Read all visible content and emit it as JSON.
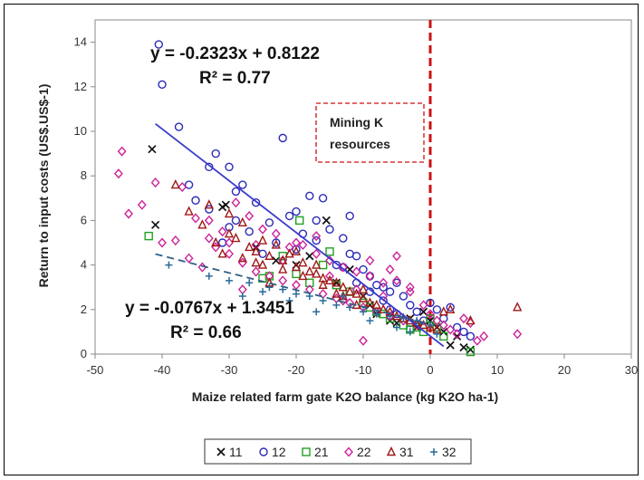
{
  "chart_data": {
    "type": "scatter",
    "title": "",
    "xlabel": "Maize related farm gate K2O balance (kg K2O ha-1)",
    "ylabel": "Return to input costs (US$.US$-1)",
    "xlim": [
      -50,
      30
    ],
    "ylim": [
      0,
      15
    ],
    "xticks": [
      "-50",
      "-40",
      "-30",
      "-20",
      "-10",
      "0",
      "10",
      "20",
      "30"
    ],
    "yticks": [
      "0",
      "2",
      "4",
      "6",
      "8",
      "10",
      "12",
      "14"
    ],
    "grid": false,
    "legend_position": "bottom",
    "reference_line": {
      "x": 0,
      "color": "#cc1111",
      "style": "dashed"
    },
    "annotation_box": {
      "text_line1": "Mining K",
      "text_line2": "resources"
    },
    "trendlines": [
      {
        "equation": "y = -0.2323x + 0.8122",
        "r2": "R² = 0.77",
        "slope": -0.2323,
        "intercept": 0.8122,
        "x_range": [
          -41,
          2
        ],
        "color": "#3a3acc",
        "style": "solid"
      },
      {
        "equation": "y = -0.0767x + 1.3451",
        "r2": "R² = 0.66",
        "slope": -0.0767,
        "intercept": 1.3451,
        "x_range": [
          -41,
          0
        ],
        "color": "#2e5f86",
        "style": "dashed"
      }
    ],
    "series": [
      {
        "name": "11",
        "marker": "x",
        "color": "#111111",
        "points": [
          [
            -41.5,
            9.2
          ],
          [
            -41,
            5.8
          ],
          [
            -31,
            6.6
          ],
          [
            -30.5,
            6.7
          ],
          [
            -15.5,
            6.0
          ],
          [
            -23,
            4.2
          ],
          [
            -18,
            4.4
          ],
          [
            -12,
            3.8
          ],
          [
            -9,
            2.2
          ],
          [
            -8,
            1.8
          ],
          [
            -6,
            1.5
          ],
          [
            -2,
            1.2
          ],
          [
            0,
            1.5
          ],
          [
            1,
            1.2
          ],
          [
            2,
            1.0
          ],
          [
            3,
            0.4
          ],
          [
            4,
            0.8
          ],
          [
            5,
            0.3
          ],
          [
            6,
            0.2
          ],
          [
            -1,
            1.9
          ],
          [
            -3,
            1.6
          ],
          [
            -10,
            2.6
          ],
          [
            -14,
            3.2
          ],
          [
            -20,
            4.0
          ],
          [
            -26,
            4.8
          ],
          [
            -5,
            1.4
          ]
        ]
      },
      {
        "name": "12",
        "marker": "circle",
        "color": "#2a2ab8",
        "points": [
          [
            -40.5,
            13.9
          ],
          [
            -40,
            12.1
          ],
          [
            -37.5,
            10.2
          ],
          [
            -33,
            8.4
          ],
          [
            -32,
            9.0
          ],
          [
            -30,
            8.4
          ],
          [
            -29,
            7.3
          ],
          [
            -28,
            7.6
          ],
          [
            -26,
            6.8
          ],
          [
            -22,
            9.7
          ],
          [
            -20,
            6.4
          ],
          [
            -18,
            7.1
          ],
          [
            -16,
            7.0
          ],
          [
            -17,
            6.0
          ],
          [
            -15,
            5.6
          ],
          [
            -13,
            5.2
          ],
          [
            -12,
            4.5
          ],
          [
            -11,
            4.4
          ],
          [
            -10,
            3.8
          ],
          [
            -9,
            3.5
          ],
          [
            -8,
            3.1
          ],
          [
            -7,
            3.0
          ],
          [
            -6,
            2.8
          ],
          [
            -5,
            3.2
          ],
          [
            -4,
            2.6
          ],
          [
            -3,
            2.2
          ],
          [
            -2,
            1.9
          ],
          [
            -1,
            1.5
          ],
          [
            0,
            2.3
          ],
          [
            1,
            2.0
          ],
          [
            2,
            1.6
          ],
          [
            3,
            2.1
          ],
          [
            4,
            1.2
          ],
          [
            5,
            1.0
          ],
          [
            6,
            0.8
          ],
          [
            -35,
            6.9
          ],
          [
            -33,
            6.5
          ],
          [
            -31,
            5.0
          ],
          [
            -29,
            6.0
          ],
          [
            -27,
            5.5
          ],
          [
            -25,
            4.5
          ],
          [
            -23,
            5.0
          ],
          [
            -21,
            6.2
          ],
          [
            -19,
            5.4
          ],
          [
            -14,
            4.0
          ],
          [
            -13,
            3.9
          ],
          [
            -11,
            3.2
          ],
          [
            -9,
            2.8
          ],
          [
            -7,
            2.4
          ],
          [
            -6,
            2.0
          ],
          [
            -5,
            1.8
          ],
          [
            -3,
            1.4
          ],
          [
            -12,
            6.2
          ],
          [
            -17,
            5.1
          ],
          [
            -20,
            4.7
          ],
          [
            -24,
            5.9
          ],
          [
            -30,
            5.7
          ],
          [
            -36,
            7.6
          ]
        ]
      },
      {
        "name": "21",
        "marker": "square",
        "color": "#22a022",
        "points": [
          [
            -42,
            5.3
          ],
          [
            -19.5,
            6.0
          ],
          [
            -25,
            3.4
          ],
          [
            -24,
            3.5
          ],
          [
            -20,
            3.6
          ],
          [
            -14,
            3.1
          ],
          [
            -12,
            2.8
          ],
          [
            -10,
            2.3
          ],
          [
            -8,
            1.9
          ],
          [
            -6,
            1.6
          ],
          [
            -4,
            1.3
          ],
          [
            -3,
            1.1
          ],
          [
            -1,
            1.0
          ],
          [
            0,
            1.6
          ],
          [
            1,
            1.2
          ],
          [
            2,
            0.8
          ],
          [
            6,
            0.1
          ],
          [
            -16,
            4.0
          ],
          [
            -18,
            3.2
          ],
          [
            -22,
            4.4
          ],
          [
            -15,
            4.6
          ],
          [
            -9,
            2.1
          ],
          [
            -7,
            1.8
          ],
          [
            -2,
            1.2
          ]
        ]
      },
      {
        "name": "22",
        "marker": "diamond",
        "color": "#cc2299",
        "points": [
          [
            -46,
            9.1
          ],
          [
            -46.5,
            8.1
          ],
          [
            -43,
            6.7
          ],
          [
            -45,
            6.3
          ],
          [
            -41,
            7.7
          ],
          [
            -37,
            7.5
          ],
          [
            -35,
            6.1
          ],
          [
            -38,
            5.1
          ],
          [
            -33,
            5.2
          ],
          [
            -31,
            5.5
          ],
          [
            -29,
            6.8
          ],
          [
            -27,
            6.2
          ],
          [
            -25,
            5.6
          ],
          [
            -23,
            5.4
          ],
          [
            -21,
            4.8
          ],
          [
            -19,
            4.9
          ],
          [
            -17,
            4.5
          ],
          [
            -15,
            4.2
          ],
          [
            -13,
            3.9
          ],
          [
            -11,
            3.7
          ],
          [
            -9,
            3.5
          ],
          [
            -7,
            3.2
          ],
          [
            -5,
            4.4
          ],
          [
            -3,
            2.8
          ],
          [
            -1,
            2.2
          ],
          [
            0,
            1.8
          ],
          [
            1,
            1.5
          ],
          [
            2,
            1.3
          ],
          [
            3,
            1.1
          ],
          [
            4,
            0.9
          ],
          [
            5,
            1.6
          ],
          [
            7,
            0.6
          ],
          [
            8,
            0.8
          ],
          [
            13,
            0.9
          ],
          [
            -40,
            5.0
          ],
          [
            -36,
            4.3
          ],
          [
            -34,
            3.9
          ],
          [
            -32,
            4.8
          ],
          [
            -30,
            4.5
          ],
          [
            -28,
            4.1
          ],
          [
            -26,
            3.7
          ],
          [
            -24,
            3.5
          ],
          [
            -22,
            3.3
          ],
          [
            -20,
            3.1
          ],
          [
            -18,
            2.9
          ],
          [
            -16,
            2.7
          ],
          [
            -14,
            2.5
          ],
          [
            -12,
            2.3
          ],
          [
            -10,
            2.1
          ],
          [
            -8,
            1.9
          ],
          [
            -6,
            1.7
          ],
          [
            -4,
            1.5
          ],
          [
            -2,
            1.3
          ],
          [
            -28,
            2.9
          ],
          [
            -10,
            0.6
          ],
          [
            -6,
            3.8
          ],
          [
            -20,
            5.0
          ],
          [
            -17,
            5.3
          ],
          [
            -22,
            4.2
          ],
          [
            -26,
            4.9
          ],
          [
            -30,
            5.0
          ],
          [
            -33,
            6.0
          ],
          [
            -9,
            4.2
          ],
          [
            -5,
            3.3
          ],
          [
            -3,
            3.0
          ],
          [
            -15,
            3.5
          ],
          [
            -13,
            2.4
          ],
          [
            -11,
            2.9
          ],
          [
            -7,
            2.6
          ],
          [
            6,
            1.4
          ]
        ]
      },
      {
        "name": "31",
        "marker": "triangle",
        "color": "#a01818",
        "points": [
          [
            -38,
            7.6
          ],
          [
            -36,
            6.4
          ],
          [
            -34,
            5.8
          ],
          [
            -33,
            6.7
          ],
          [
            -32,
            5.0
          ],
          [
            -30,
            6.3
          ],
          [
            -29,
            5.2
          ],
          [
            -28,
            5.9
          ],
          [
            -27,
            4.8
          ],
          [
            -26,
            4.6
          ],
          [
            -25,
            5.1
          ],
          [
            -24,
            4.4
          ],
          [
            -23,
            4.9
          ],
          [
            -22,
            4.2
          ],
          [
            -21,
            4.5
          ],
          [
            -20,
            3.9
          ],
          [
            -19,
            4.1
          ],
          [
            -18,
            3.7
          ],
          [
            -17,
            3.6
          ],
          [
            -16,
            3.4
          ],
          [
            -15,
            3.3
          ],
          [
            -14,
            3.2
          ],
          [
            -13,
            3.0
          ],
          [
            -12,
            2.8
          ],
          [
            -11,
            2.7
          ],
          [
            -10,
            2.5
          ],
          [
            -9,
            2.3
          ],
          [
            -8,
            2.2
          ],
          [
            -7,
            2.0
          ],
          [
            -6,
            1.9
          ],
          [
            -5,
            1.7
          ],
          [
            -4,
            1.6
          ],
          [
            -3,
            1.5
          ],
          [
            -2,
            1.4
          ],
          [
            -1,
            1.3
          ],
          [
            0,
            1.2
          ],
          [
            1,
            1.1
          ],
          [
            2,
            1.9
          ],
          [
            3,
            2.0
          ],
          [
            6,
            1.5
          ],
          [
            13,
            2.1
          ],
          [
            -31,
            4.5
          ],
          [
            -28,
            4.3
          ],
          [
            -25,
            4.0
          ],
          [
            -22,
            3.8
          ],
          [
            -19,
            3.5
          ],
          [
            -16,
            3.1
          ],
          [
            -13,
            2.6
          ],
          [
            -10,
            2.9
          ],
          [
            -24,
            3.2
          ],
          [
            -30,
            5.4
          ],
          [
            -26,
            4.1
          ],
          [
            -20,
            4.6
          ],
          [
            -17,
            4.0
          ],
          [
            -14,
            2.7
          ],
          [
            -11,
            2.2
          ]
        ]
      },
      {
        "name": "32",
        "marker": "plus",
        "color": "#2a6a9a",
        "points": [
          [
            -39,
            4.0
          ],
          [
            -33,
            3.5
          ],
          [
            -30,
            3.3
          ],
          [
            -27,
            3.2
          ],
          [
            -24,
            3.0
          ],
          [
            -22,
            2.9
          ],
          [
            -20,
            2.7
          ],
          [
            -18,
            2.6
          ],
          [
            -16,
            2.4
          ],
          [
            -14,
            2.2
          ],
          [
            -12,
            2.1
          ],
          [
            -10,
            1.9
          ],
          [
            -8,
            1.8
          ],
          [
            -6,
            1.7
          ],
          [
            -4,
            1.6
          ],
          [
            -2,
            1.5
          ],
          [
            0,
            1.3
          ],
          [
            -28,
            2.6
          ],
          [
            -25,
            2.8
          ],
          [
            -21,
            2.4
          ],
          [
            -17,
            1.9
          ],
          [
            -13,
            2.6
          ],
          [
            -9,
            1.5
          ],
          [
            -5,
            1.2
          ],
          [
            -3,
            1.0
          ],
          [
            1,
            0.9
          ]
        ]
      }
    ]
  }
}
